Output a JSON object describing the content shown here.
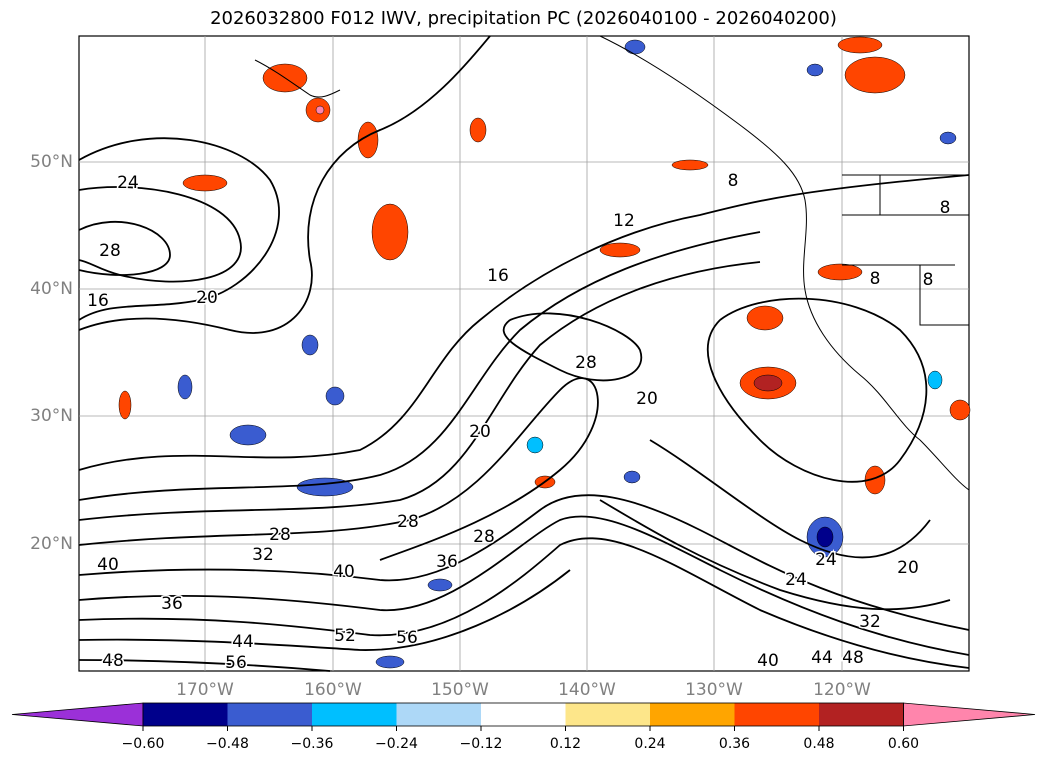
{
  "title": "2026032800 F012 IWV, precipitation PC (2026040100 - 2026040200)",
  "lat_labels": [
    "50°N",
    "40°N",
    "30°N",
    "20°N"
  ],
  "lon_labels": [
    "170°W",
    "160°W",
    "150°W",
    "140°W",
    "130°W",
    "120°W"
  ],
  "colorbar": {
    "colors": [
      "#9b30d8",
      "#00008b",
      "#3a5cd0",
      "#00bfff",
      "#add8f7",
      "#ffffff",
      "#fde68a",
      "#ffa500",
      "#ff4500",
      "#b22222",
      "#ff85ac"
    ],
    "ticks": [
      "−0.60",
      "−0.48",
      "−0.36",
      "−0.24",
      "−0.12",
      "0.12",
      "0.24",
      "0.36",
      "0.48",
      "0.60"
    ]
  },
  "contour_labels": [
    "24",
    "28",
    "16",
    "20",
    "8",
    "12",
    "16",
    "28",
    "20",
    "20",
    "28",
    "28",
    "32",
    "40",
    "36",
    "44",
    "48",
    "56",
    "52",
    "56",
    "40",
    "36",
    "28",
    "24",
    "20",
    "24",
    "32",
    "40",
    "44",
    "48",
    "8",
    "8",
    "8"
  ],
  "colors": {
    "contour": "#000000",
    "grid": "#a0a0a0",
    "axis_label": "#808080"
  }
}
